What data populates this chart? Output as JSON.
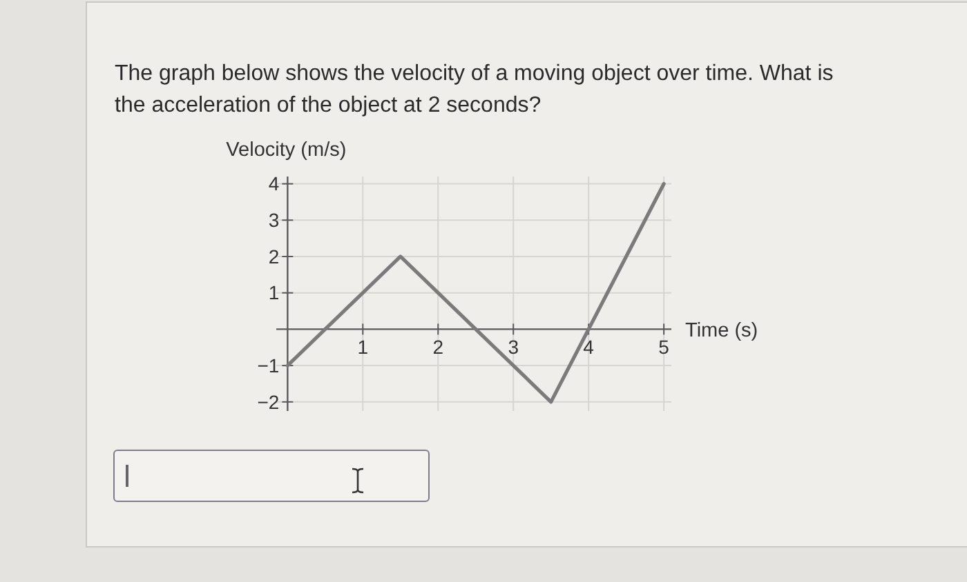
{
  "chart_data": {
    "type": "line",
    "title": "The graph below shows the velocity of a moving object over time. What is the acceleration of the object at 2 seconds?",
    "xlabel": "Time (s)",
    "ylabel": "Velocity (m/s)",
    "x": [
      0,
      1.5,
      3.5,
      5
    ],
    "series": [
      {
        "color": "#7b7b7b",
        "values": [
          -1,
          2,
          -2,
          4
        ]
      }
    ],
    "xlim": [
      -0.15,
      5.1
    ],
    "ylim": [
      -2.25,
      4.2
    ],
    "xticks": [
      1,
      2,
      3,
      4,
      5
    ],
    "yticks": [
      -2,
      -1,
      1,
      2,
      3,
      4
    ],
    "grid": true,
    "line_style": "solid"
  }
}
